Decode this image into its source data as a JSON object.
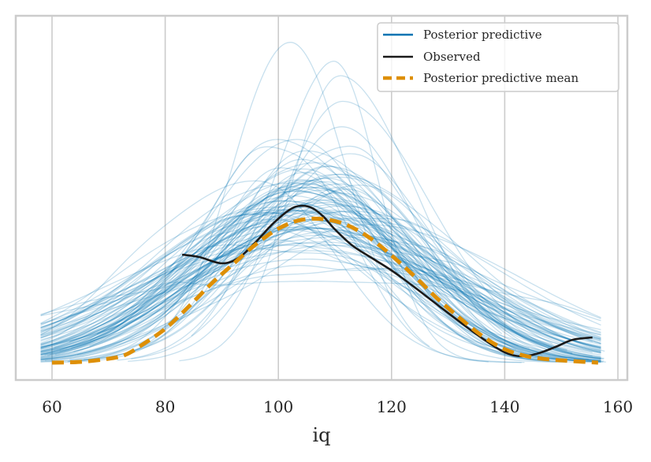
{
  "chart_data": {
    "type": "line",
    "title": "",
    "xlabel": "iq",
    "ylabel": "",
    "xlim": [
      54,
      162
    ],
    "ylim": [
      0,
      0.0445
    ],
    "xticks": [
      60,
      80,
      100,
      120,
      140,
      160
    ],
    "xtick_labels": [
      "60",
      "80",
      "100",
      "120",
      "140",
      "160"
    ],
    "yticks_visible": false,
    "grid": "vertical",
    "legend": {
      "placement": "top-right",
      "entries": [
        {
          "label": "Posterior predictive",
          "color": "#0173b2",
          "style": "solid"
        },
        {
          "label": "Observed",
          "color": "#1a1a1a",
          "style": "solid"
        },
        {
          "label": "Posterior predictive mean",
          "color": "#de8f05",
          "style": "dashed"
        }
      ]
    },
    "colors": {
      "posterior_predictive": "#0173b2",
      "observed": "#1a1a1a",
      "mean": "#de8f05",
      "grid": "#cccccc",
      "frame": "#cccccc"
    },
    "posterior_predictive": {
      "n_draws": 100,
      "description": "KDE curves of posterior predictive draws, peaks mostly 0.016-0.025, a few spiky draws peaking up to ~0.042 around iq 100-112",
      "peak_examples": [
        {
          "mode": 109,
          "peak": 0.0415
        },
        {
          "mode": 102,
          "peak": 0.0375
        },
        {
          "mode": 111,
          "peak": 0.035
        },
        {
          "mode": 110,
          "peak": 0.031
        },
        {
          "mode": 112,
          "peak": 0.028
        }
      ]
    },
    "series": [
      {
        "name": "Observed",
        "x": [
          83,
          86,
          90,
          93,
          96,
          99,
          102,
          104,
          106,
          108,
          110,
          113,
          116,
          120,
          124,
          128,
          132,
          136,
          140,
          143,
          146,
          149,
          152,
          155.5
        ],
        "y": [
          0.0137,
          0.0134,
          0.0126,
          0.0133,
          0.0153,
          0.0176,
          0.0194,
          0.0199,
          0.0196,
          0.0185,
          0.0169,
          0.0149,
          0.0135,
          0.0117,
          0.0096,
          0.0074,
          0.0052,
          0.0031,
          0.0013,
          0.0008,
          0.0012,
          0.002,
          0.0029,
          0.0032
        ]
      },
      {
        "name": "Posterior predictive mean",
        "x": [
          60,
          65,
          70,
          73,
          76,
          80,
          84,
          88,
          92,
          96,
          100,
          104,
          108,
          112,
          116,
          120,
          124,
          128,
          132,
          136,
          140,
          144,
          148,
          152,
          156.5
        ],
        "y": [
          0.0,
          0.0001,
          0.0005,
          0.001,
          0.0023,
          0.0043,
          0.007,
          0.0099,
          0.0125,
          0.015,
          0.017,
          0.0181,
          0.0182,
          0.0175,
          0.0159,
          0.0136,
          0.011,
          0.0082,
          0.0057,
          0.0034,
          0.0017,
          0.0008,
          0.0004,
          0.0002,
          0.0
        ]
      }
    ]
  }
}
